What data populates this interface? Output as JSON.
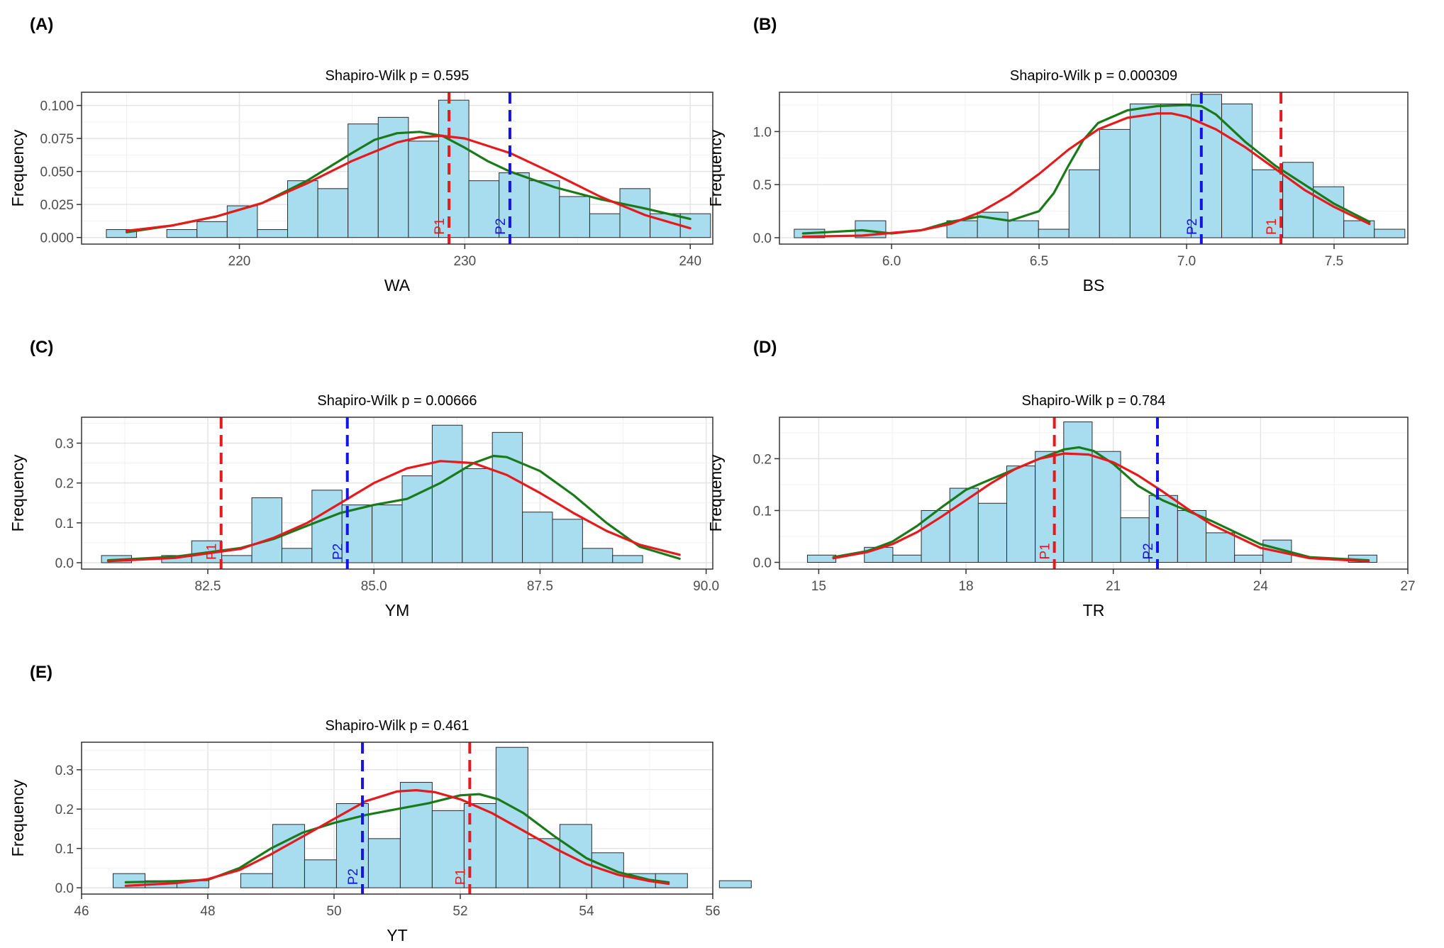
{
  "figure": {
    "grid": true
  },
  "chart_data": [
    {
      "panel_label": "(A)",
      "type": "histogram",
      "title": "Shapiro-Wilk p = 0.595",
      "xlabel": "WA",
      "ylabel": "Frequency",
      "xlim": [
        213,
        241
      ],
      "ylim": [
        -0.005,
        0.11
      ],
      "xticks": [
        220,
        230,
        240
      ],
      "xtick_labels": [
        "220",
        "230",
        "240"
      ],
      "yticks": [
        0,
        0.025,
        0.05,
        0.075,
        0.1
      ],
      "ytick_labels": [
        "0.000",
        "0.025",
        "0.050",
        "0.075",
        "0.100"
      ],
      "bins": {
        "start": 214.1,
        "width": 1.34,
        "values": [
          0.006,
          0,
          0.006,
          0.012,
          0.024,
          0.006,
          0.043,
          0.037,
          0.086,
          0.091,
          0.073,
          0.104,
          0.043,
          0.049,
          0.043,
          0.031,
          0.018,
          0.037,
          0.018,
          0.018
        ]
      },
      "vlines": [
        {
          "label": "P1",
          "x": 229.3,
          "color": "#e41a1c"
        },
        {
          "label": "P2",
          "x": 232.0,
          "color": "#1414e6"
        }
      ],
      "curves": [
        {
          "color": "#1a7a1a",
          "x": [
            215,
            217,
            219,
            221,
            223,
            225,
            226,
            227,
            228,
            229,
            230,
            231,
            232,
            234,
            236,
            238,
            240
          ],
          "y": [
            0.004,
            0.009,
            0.016,
            0.026,
            0.043,
            0.064,
            0.074,
            0.079,
            0.08,
            0.077,
            0.068,
            0.058,
            0.05,
            0.038,
            0.029,
            0.022,
            0.014
          ]
        },
        {
          "color": "#e41a1c",
          "x": [
            215,
            217,
            219,
            221,
            223,
            225,
            227,
            228,
            229,
            230,
            232,
            234,
            236,
            238,
            240
          ],
          "y": [
            0.005,
            0.009,
            0.016,
            0.026,
            0.041,
            0.058,
            0.072,
            0.076,
            0.077,
            0.075,
            0.064,
            0.048,
            0.031,
            0.017,
            0.007
          ]
        }
      ]
    },
    {
      "panel_label": "(B)",
      "type": "histogram",
      "title": "Shapiro-Wilk p = 0.000309",
      "xlabel": "BS",
      "ylabel": "Frequency",
      "xlim": [
        5.62,
        7.75
      ],
      "ylim": [
        -0.06,
        1.37
      ],
      "xticks": [
        6.0,
        6.5,
        7.0,
        7.5
      ],
      "xtick_labels": [
        "6.0",
        "6.5",
        "7.0",
        "7.5"
      ],
      "yticks": [
        0,
        0.5,
        1.0
      ],
      "ytick_labels": [
        "0.0",
        "0.5",
        "1.0"
      ],
      "bins": {
        "start": 5.67,
        "width": 0.1035,
        "values": [
          0.08,
          0,
          0.16,
          0,
          0,
          0.16,
          0.24,
          0.16,
          0.08,
          0.64,
          1.02,
          1.26,
          1.26,
          1.35,
          1.26,
          0.64,
          0.71,
          0.48,
          0.16,
          0.08
        ]
      },
      "vlines": [
        {
          "label": "P1",
          "x": 7.32,
          "color": "#e41a1c"
        },
        {
          "label": "P2",
          "x": 7.05,
          "color": "#1414e6"
        }
      ],
      "curves": [
        {
          "color": "#1a7a1a",
          "x": [
            5.7,
            5.9,
            6.0,
            6.1,
            6.2,
            6.3,
            6.4,
            6.5,
            6.55,
            6.6,
            6.65,
            6.7,
            6.8,
            6.9,
            7.0,
            7.05,
            7.1,
            7.2,
            7.3,
            7.4,
            7.5,
            7.62
          ],
          "y": [
            0.04,
            0.07,
            0.04,
            0.07,
            0.15,
            0.2,
            0.16,
            0.25,
            0.42,
            0.68,
            0.92,
            1.08,
            1.2,
            1.24,
            1.25,
            1.24,
            1.16,
            0.9,
            0.68,
            0.5,
            0.32,
            0.15
          ]
        },
        {
          "color": "#e41a1c",
          "x": [
            5.7,
            5.9,
            6.1,
            6.2,
            6.3,
            6.4,
            6.5,
            6.6,
            6.7,
            6.8,
            6.9,
            6.95,
            7.0,
            7.1,
            7.2,
            7.3,
            7.4,
            7.5,
            7.62
          ],
          "y": [
            0.01,
            0.02,
            0.07,
            0.13,
            0.24,
            0.4,
            0.6,
            0.83,
            1.02,
            1.13,
            1.17,
            1.17,
            1.14,
            1.02,
            0.85,
            0.65,
            0.45,
            0.29,
            0.13
          ]
        }
      ]
    },
    {
      "panel_label": "(C)",
      "type": "histogram",
      "title": "Shapiro-Wilk p = 0.00666",
      "xlabel": "YM",
      "ylabel": "Frequency",
      "xlim": [
        80.6,
        90.1
      ],
      "ylim": [
        -0.016,
        0.365
      ],
      "xticks": [
        82.5,
        85.0,
        87.5,
        90.0
      ],
      "xtick_labels": [
        "82.5",
        "85.0",
        "87.5",
        "90.0"
      ],
      "yticks": [
        0,
        0.1,
        0.2,
        0.3
      ],
      "ytick_labels": [
        "0.0",
        "0.1",
        "0.2",
        "0.3"
      ],
      "bins": {
        "start": 80.9,
        "width": 0.4525,
        "values": [
          0.018,
          0,
          0.018,
          0.055,
          0.018,
          0.163,
          0.036,
          0.182,
          0.145,
          0.145,
          0.218,
          0.345,
          0.236,
          0.327,
          0.127,
          0.109,
          0.036,
          0.018
        ]
      },
      "vlines": [
        {
          "label": "P1",
          "x": 82.7,
          "color": "#e41a1c"
        },
        {
          "label": "P2",
          "x": 84.6,
          "color": "#1414e6"
        }
      ],
      "curves": [
        {
          "color": "#1a7a1a",
          "x": [
            81.0,
            82.0,
            83.0,
            83.5,
            84.0,
            84.5,
            85.0,
            85.5,
            86.0,
            86.5,
            86.8,
            87.0,
            87.5,
            88.0,
            88.5,
            89.0,
            89.6
          ],
          "y": [
            0.006,
            0.015,
            0.037,
            0.06,
            0.093,
            0.125,
            0.145,
            0.16,
            0.2,
            0.25,
            0.268,
            0.265,
            0.23,
            0.17,
            0.1,
            0.04,
            0.01
          ]
        },
        {
          "color": "#e41a1c",
          "x": [
            81.0,
            82.0,
            83.0,
            83.5,
            84.0,
            84.5,
            85.0,
            85.5,
            86.0,
            86.5,
            87.0,
            87.5,
            88.0,
            88.5,
            89.0,
            89.6
          ],
          "y": [
            0.004,
            0.012,
            0.035,
            0.063,
            0.1,
            0.15,
            0.2,
            0.237,
            0.255,
            0.25,
            0.22,
            0.175,
            0.125,
            0.08,
            0.045,
            0.02
          ]
        }
      ]
    },
    {
      "panel_label": "(D)",
      "type": "histogram",
      "title": "Shapiro-Wilk p = 0.784",
      "xlabel": "TR",
      "ylabel": "Frequency",
      "xlim": [
        14.2,
        27.0
      ],
      "ylim": [
        -0.013,
        0.28
      ],
      "xticks": [
        15,
        18,
        21,
        24,
        27
      ],
      "xtick_labels": [
        "15",
        "18",
        "21",
        "24",
        "27"
      ],
      "yticks": [
        0,
        0.1,
        0.2
      ],
      "ytick_labels": [
        "0.0",
        "0.1",
        "0.2"
      ],
      "bins": {
        "start": 14.77,
        "width": 0.58,
        "values": [
          0.014,
          0,
          0.029,
          0.014,
          0.1,
          0.143,
          0.114,
          0.186,
          0.214,
          0.271,
          0.214,
          0.086,
          0.129,
          0.1,
          0.057,
          0.014,
          0.043,
          0,
          0,
          0.014
        ]
      },
      "vlines": [
        {
          "label": "P1",
          "x": 19.8,
          "color": "#e41a1c"
        },
        {
          "label": "P2",
          "x": 21.9,
          "color": "#1414e6"
        }
      ],
      "curves": [
        {
          "color": "#1a7a1a",
          "x": [
            15.3,
            16.0,
            16.5,
            17.0,
            17.5,
            18.0,
            18.5,
            19.0,
            19.5,
            20.0,
            20.3,
            20.6,
            21.0,
            21.5,
            22.0,
            22.5,
            23.0,
            24.0,
            25.0,
            26.2
          ],
          "y": [
            0.01,
            0.022,
            0.04,
            0.07,
            0.106,
            0.14,
            0.16,
            0.18,
            0.2,
            0.218,
            0.222,
            0.215,
            0.19,
            0.148,
            0.12,
            0.1,
            0.08,
            0.035,
            0.01,
            0.004
          ]
        },
        {
          "color": "#e41a1c",
          "x": [
            15.3,
            16.0,
            16.5,
            17.0,
            17.5,
            18.0,
            18.5,
            19.0,
            19.5,
            20.0,
            20.5,
            21.0,
            21.5,
            22.0,
            22.5,
            23.0,
            24.0,
            25.0,
            26.2
          ],
          "y": [
            0.008,
            0.02,
            0.035,
            0.058,
            0.088,
            0.12,
            0.152,
            0.18,
            0.2,
            0.21,
            0.208,
            0.193,
            0.168,
            0.137,
            0.104,
            0.073,
            0.028,
            0.008,
            0.002
          ]
        }
      ]
    },
    {
      "panel_label": "(E)",
      "type": "histogram",
      "title": "Shapiro-Wilk p = 0.461",
      "xlabel": "YT",
      "ylabel": "Frequency",
      "xlim": [
        46.0,
        56.0
      ],
      "ylim": [
        -0.016,
        0.37
      ],
      "xticks": [
        46,
        48,
        50,
        52,
        54,
        56
      ],
      "xtick_labels": [
        "46",
        "48",
        "50",
        "52",
        "54",
        "56"
      ],
      "yticks": [
        0,
        0.1,
        0.2,
        0.3
      ],
      "ytick_labels": [
        "0.0",
        "0.1",
        "0.2",
        "0.3"
      ],
      "bins": {
        "start": 46.5,
        "width": 0.5055,
        "values": [
          0.036,
          0.018,
          0.018,
          0,
          0.036,
          0.161,
          0.071,
          0.214,
          0.125,
          0.268,
          0.196,
          0.214,
          0.357,
          0.125,
          0.161,
          0.089,
          0.036,
          0.036,
          0,
          0.018
        ]
      },
      "vlines": [
        {
          "label": "P1",
          "x": 52.15,
          "color": "#e41a1c"
        },
        {
          "label": "P2",
          "x": 50.45,
          "color": "#1414e6"
        }
      ],
      "curves": [
        {
          "color": "#1a7a1a",
          "x": [
            46.7,
            47.5,
            48.0,
            48.5,
            49.0,
            49.5,
            50.0,
            50.5,
            51.0,
            51.5,
            52.0,
            52.3,
            52.6,
            53.0,
            53.5,
            54.0,
            54.5,
            55.0,
            55.3
          ],
          "y": [
            0.014,
            0.017,
            0.02,
            0.05,
            0.1,
            0.14,
            0.165,
            0.185,
            0.2,
            0.215,
            0.235,
            0.238,
            0.225,
            0.19,
            0.13,
            0.075,
            0.04,
            0.02,
            0.014
          ]
        },
        {
          "color": "#e41a1c",
          "x": [
            46.7,
            47.5,
            48.0,
            48.5,
            49.0,
            49.5,
            50.0,
            50.5,
            51.0,
            51.3,
            51.6,
            52.0,
            52.5,
            53.0,
            53.5,
            54.0,
            54.5,
            55.0,
            55.3
          ],
          "y": [
            0.005,
            0.012,
            0.022,
            0.045,
            0.085,
            0.13,
            0.175,
            0.22,
            0.245,
            0.248,
            0.243,
            0.225,
            0.19,
            0.145,
            0.1,
            0.06,
            0.033,
            0.017,
            0.01
          ]
        }
      ]
    }
  ]
}
